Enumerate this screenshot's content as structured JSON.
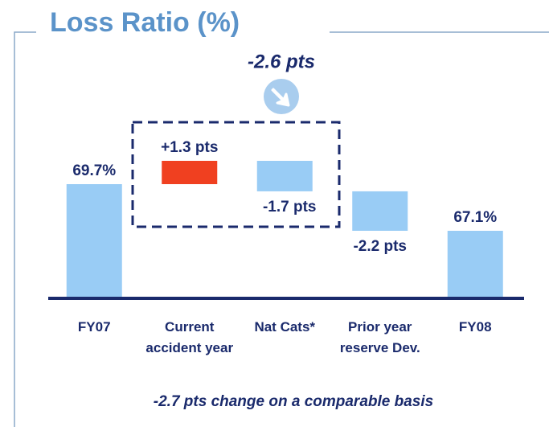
{
  "chart_data": {
    "type": "waterfall",
    "title": "Loss Ratio (%)",
    "categories": [
      "FY07",
      "Current accident year",
      "Nat Cats*",
      "Prior year reserve Dev.",
      "FY08"
    ],
    "values": [
      69.7,
      1.3,
      -1.7,
      -2.2,
      67.1
    ],
    "value_labels": [
      "69.7%",
      "+1.3 pts",
      "-1.7 pts",
      "-2.2 pts",
      "67.1%"
    ],
    "color": "#99ccf5",
    "increase_color": "#f04020",
    "annotations": [
      "-2.6 pts",
      "-2.7 pts change on a comparable basis"
    ]
  }
}
